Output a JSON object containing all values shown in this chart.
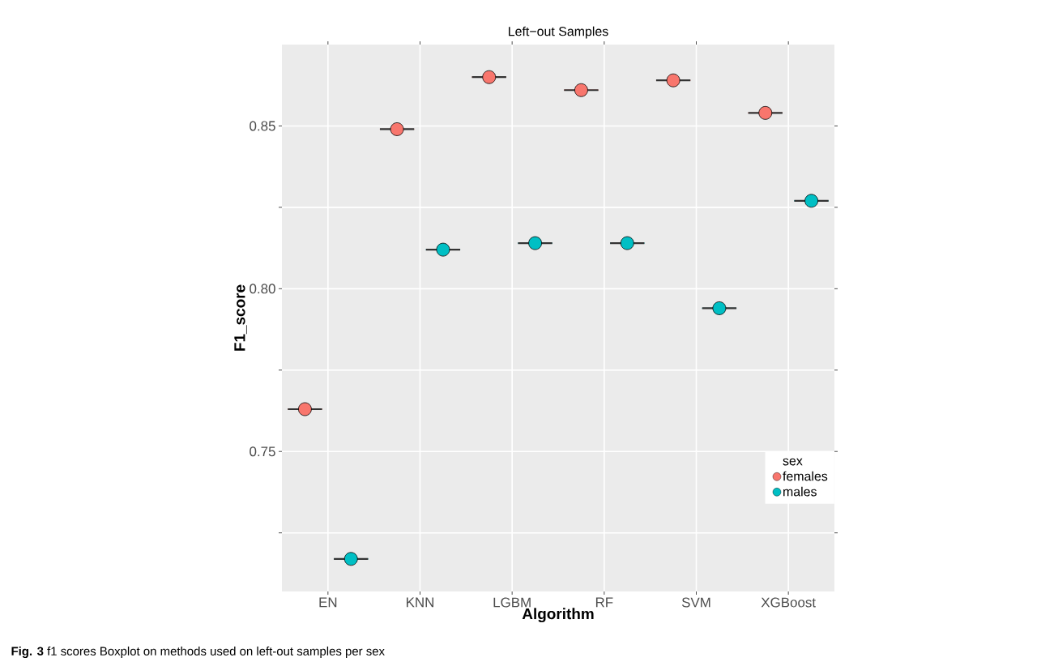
{
  "chart_data": {
    "type": "box",
    "title": "Left−out Samples",
    "xlabel": "Algorithm",
    "ylabel": "F1_score",
    "legend_title": "sex",
    "categories": [
      "EN",
      "KNN",
      "LGBM",
      "RF",
      "SVM",
      "XGBoost"
    ],
    "series": [
      {
        "name": "females",
        "color": "#f8766d",
        "boxes": [
          {
            "low": 0.763,
            "q1": 0.763,
            "median": 0.763,
            "q3": 0.763,
            "high": 0.763
          },
          {
            "low": 0.849,
            "q1": 0.849,
            "median": 0.849,
            "q3": 0.849,
            "high": 0.849
          },
          {
            "low": 0.865,
            "q1": 0.865,
            "median": 0.865,
            "q3": 0.865,
            "high": 0.865
          },
          {
            "low": 0.861,
            "q1": 0.861,
            "median": 0.861,
            "q3": 0.861,
            "high": 0.861
          },
          {
            "low": 0.864,
            "q1": 0.864,
            "median": 0.864,
            "q3": 0.864,
            "high": 0.864
          },
          {
            "low": 0.854,
            "q1": 0.854,
            "median": 0.854,
            "q3": 0.854,
            "high": 0.854
          }
        ]
      },
      {
        "name": "males",
        "color": "#00bfc4",
        "boxes": [
          {
            "low": 0.717,
            "q1": 0.717,
            "median": 0.717,
            "q3": 0.717,
            "high": 0.717
          },
          {
            "low": 0.812,
            "q1": 0.812,
            "median": 0.812,
            "q3": 0.812,
            "high": 0.812
          },
          {
            "low": 0.814,
            "q1": 0.814,
            "median": 0.814,
            "q3": 0.814,
            "high": 0.814
          },
          {
            "low": 0.814,
            "q1": 0.814,
            "median": 0.814,
            "q3": 0.814,
            "high": 0.814
          },
          {
            "low": 0.794,
            "q1": 0.794,
            "median": 0.794,
            "q3": 0.794,
            "high": 0.794
          },
          {
            "low": 0.827,
            "q1": 0.827,
            "median": 0.827,
            "q3": 0.827,
            "high": 0.827
          }
        ]
      },
      {
        "type": "scatter",
        "color": "#f8766d",
        "x": [
          "EN",
          "KNN",
          "LGBM",
          "RF",
          "SVM",
          "XGBoost"
        ],
        "values": [
          0.763,
          0.849,
          0.865,
          0.861,
          0.864,
          0.854
        ]
      },
      {
        "type": "scatter",
        "color": "#00bfc4",
        "x": [
          "EN",
          "KNN",
          "LGBM",
          "RF",
          "SVM",
          "XGBoost"
        ],
        "values": [
          0.717,
          0.812,
          0.814,
          0.814,
          0.794,
          0.827
        ]
      }
    ],
    "ylim": [
      0.707,
      0.875
    ],
    "yticks": [
      {
        "value": 0.725,
        "label": null
      },
      {
        "value": 0.75,
        "label": "0.75"
      },
      {
        "value": 0.775,
        "label": null
      },
      {
        "value": 0.8,
        "label": "0.80"
      },
      {
        "value": 0.825,
        "label": null
      },
      {
        "value": 0.85,
        "label": "0.85"
      }
    ],
    "grid": true,
    "legend": "bottom right",
    "marker": "circle",
    "annotations": [
      "**Fig. 3** f1 scores Boxplot on methods used on left-out samples per sex"
    ]
  }
}
